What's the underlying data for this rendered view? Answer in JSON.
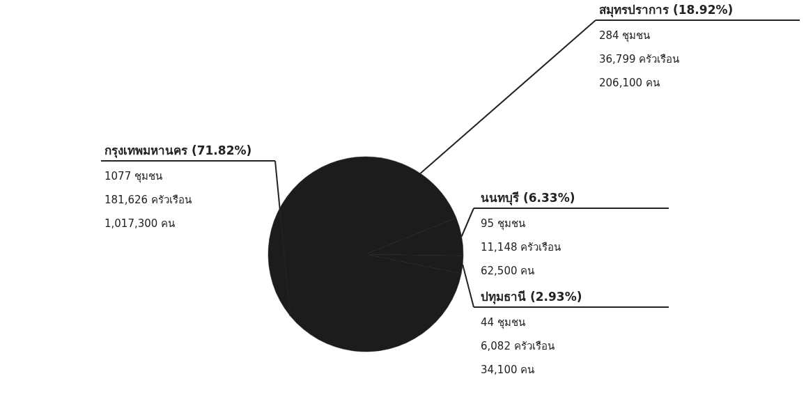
{
  "chart_data": {
    "type": "pie",
    "categories": [
      "กรุงเทพมหานคร",
      "สมุทรปราการ",
      "นนทบุรี",
      "ปทุมธานี"
    ],
    "values": [
      71.82,
      18.92,
      6.33,
      2.93
    ],
    "value_labels": [
      "(71.82%)",
      "(18.92%)",
      "(6.33%)",
      "(2.93%)"
    ],
    "colors": [
      "#1c1c1c",
      "#1c1c1c",
      "#1c1c1c",
      "#1c1c1c"
    ],
    "annotations": [
      "1077 ชุมชน",
      "181,626 ครัวเรือน",
      "1,017,300 คน",
      "284 ชุมชน",
      "36,799 ครัวเรือน",
      "206,100 คน",
      "95 ชุมชน",
      "11,148 ครัวเรือน",
      "62,500 คน",
      "44 ชุมชน",
      "6,082 ครัวเรือน",
      "34,100 คน"
    ]
  }
}
